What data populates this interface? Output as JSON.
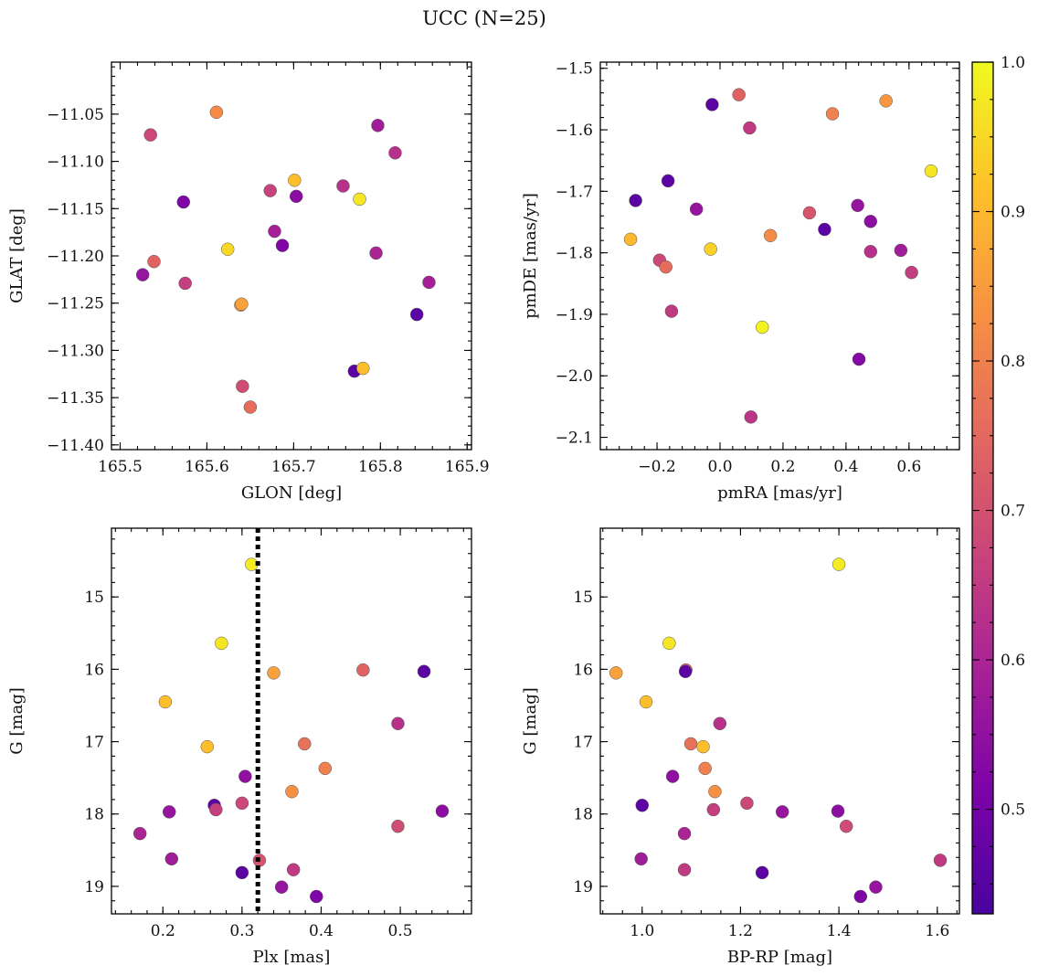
{
  "figure_title": "UCC (N=25)",
  "colorbar": {
    "range": [
      0.43,
      1.0
    ],
    "ticks": [
      0.5,
      0.6,
      0.7,
      0.8,
      0.9,
      1.0
    ],
    "tick_labels": [
      "0.5",
      "0.6",
      "0.7",
      "0.8",
      "0.9",
      "1.0"
    ],
    "colormap": "plasma"
  },
  "chart_data": [
    {
      "type": "scatter",
      "id": "glon-glat",
      "xlabel": "GLON [deg]",
      "ylabel": "GLAT [deg]",
      "xlim": [
        165.49,
        165.905
      ],
      "ylim": [
        -11.405,
        -10.995
      ],
      "y_inverted": false,
      "xticks": [
        165.5,
        165.6,
        165.7,
        165.8,
        165.9
      ],
      "xtick_labels": [
        "165.5",
        "165.6",
        "165.7",
        "165.8",
        "165.9"
      ],
      "yticks": [
        -11.05,
        -11.1,
        -11.15,
        -11.2,
        -11.25,
        -11.3,
        -11.35,
        -11.4
      ],
      "ytick_labels": [
        "−11.05",
        "−11.10",
        "−11.15",
        "−11.20",
        "−11.25",
        "−11.30",
        "−11.35",
        "−11.40"
      ],
      "grid": false,
      "points": [
        {
          "x": 165.611,
          "y": -11.048,
          "c": 0.82
        },
        {
          "x": 165.535,
          "y": -11.072,
          "c": 0.68
        },
        {
          "x": 165.797,
          "y": -11.062,
          "c": 0.58
        },
        {
          "x": 165.817,
          "y": -11.091,
          "c": 0.63
        },
        {
          "x": 165.701,
          "y": -11.12,
          "c": 0.91
        },
        {
          "x": 165.757,
          "y": -11.126,
          "c": 0.63
        },
        {
          "x": 165.673,
          "y": -11.131,
          "c": 0.67
        },
        {
          "x": 165.703,
          "y": -11.137,
          "c": 0.54
        },
        {
          "x": 165.776,
          "y": -11.14,
          "c": 0.97
        },
        {
          "x": 165.573,
          "y": -11.143,
          "c": 0.52
        },
        {
          "x": 165.678,
          "y": -11.174,
          "c": 0.59
        },
        {
          "x": 165.687,
          "y": -11.189,
          "c": 0.52
        },
        {
          "x": 165.624,
          "y": -11.193,
          "c": 0.95
        },
        {
          "x": 165.795,
          "y": -11.197,
          "c": 0.6
        },
        {
          "x": 165.539,
          "y": -11.206,
          "c": 0.74
        },
        {
          "x": 165.526,
          "y": -11.22,
          "c": 0.56
        },
        {
          "x": 165.856,
          "y": -11.228,
          "c": 0.59
        },
        {
          "x": 165.575,
          "y": -11.229,
          "c": 0.66
        },
        {
          "x": 165.639,
          "y": -11.252,
          "c": 0.84
        },
        {
          "x": 165.64,
          "y": -11.251,
          "c": 0.86
        },
        {
          "x": 165.842,
          "y": -11.262,
          "c": 0.46
        },
        {
          "x": 165.77,
          "y": -11.322,
          "c": 0.46
        },
        {
          "x": 165.78,
          "y": -11.319,
          "c": 0.91
        },
        {
          "x": 165.641,
          "y": -11.338,
          "c": 0.69
        },
        {
          "x": 165.65,
          "y": -11.36,
          "c": 0.76
        }
      ]
    },
    {
      "type": "scatter",
      "id": "pmra-pmde",
      "xlabel": "pmRA [mas/yr]",
      "ylabel": "pmDE [mas/yr]",
      "xlim": [
        -0.38,
        0.76
      ],
      "ylim": [
        -2.12,
        -1.49
      ],
      "y_inverted": false,
      "xticks": [
        -0.2,
        0.0,
        0.2,
        0.4,
        0.6
      ],
      "xtick_labels": [
        "−0.2",
        "0.0",
        "0.2",
        "0.4",
        "0.6"
      ],
      "yticks": [
        -1.5,
        -1.6,
        -1.7,
        -1.8,
        -1.9,
        -2.0,
        -2.1
      ],
      "ytick_labels": [
        "−1.5",
        "−1.6",
        "−1.7",
        "−1.8",
        "−1.9",
        "−2.0",
        "−2.1"
      ],
      "grid": false,
      "points": [
        {
          "x": 0.06,
          "y": -1.543,
          "c": 0.74
        },
        {
          "x": 0.527,
          "y": -1.553,
          "c": 0.84
        },
        {
          "x": -0.025,
          "y": -1.559,
          "c": 0.46
        },
        {
          "x": 0.357,
          "y": -1.574,
          "c": 0.8
        },
        {
          "x": 0.094,
          "y": -1.597,
          "c": 0.65
        },
        {
          "x": 0.67,
          "y": -1.667,
          "c": 0.97
        },
        {
          "x": -0.165,
          "y": -1.683,
          "c": 0.46
        },
        {
          "x": -0.268,
          "y": -1.715,
          "c": 0.46
        },
        {
          "x": 0.437,
          "y": -1.723,
          "c": 0.56
        },
        {
          "x": -0.075,
          "y": -1.729,
          "c": 0.56
        },
        {
          "x": 0.284,
          "y": -1.735,
          "c": 0.71
        },
        {
          "x": 0.478,
          "y": -1.749,
          "c": 0.54
        },
        {
          "x": 0.332,
          "y": -1.762,
          "c": 0.46
        },
        {
          "x": 0.16,
          "y": -1.772,
          "c": 0.82
        },
        {
          "x": -0.284,
          "y": -1.778,
          "c": 0.9
        },
        {
          "x": -0.03,
          "y": -1.794,
          "c": 0.94
        },
        {
          "x": 0.574,
          "y": -1.796,
          "c": 0.58
        },
        {
          "x": 0.478,
          "y": -1.798,
          "c": 0.63
        },
        {
          "x": -0.192,
          "y": -1.812,
          "c": 0.68
        },
        {
          "x": -0.172,
          "y": -1.823,
          "c": 0.76
        },
        {
          "x": 0.608,
          "y": -1.832,
          "c": 0.66
        },
        {
          "x": -0.154,
          "y": -1.895,
          "c": 0.65
        },
        {
          "x": 0.134,
          "y": -1.921,
          "c": 0.99
        },
        {
          "x": 0.441,
          "y": -1.973,
          "c": 0.53
        },
        {
          "x": 0.098,
          "y": -2.067,
          "c": 0.64
        }
      ]
    },
    {
      "type": "scatter",
      "id": "plx-g",
      "xlabel": "Plx [mas]",
      "ylabel": "G [mag]",
      "xlim": [
        0.135,
        0.59
      ],
      "ylim": [
        14.05,
        19.38
      ],
      "y_inverted": true,
      "xticks": [
        0.2,
        0.3,
        0.4,
        0.5
      ],
      "xtick_labels": [
        "0.2",
        "0.3",
        "0.4",
        "0.5"
      ],
      "yticks": [
        15,
        16,
        17,
        18,
        19
      ],
      "ytick_labels": [
        "15",
        "16",
        "17",
        "18",
        "19"
      ],
      "vline": {
        "x": 0.32,
        "style": "dotted"
      },
      "grid": false,
      "points": [
        {
          "x": 0.312,
          "y": 14.55,
          "c": 0.98
        },
        {
          "x": 0.274,
          "y": 15.64,
          "c": 0.97
        },
        {
          "x": 0.453,
          "y": 16.01,
          "c": 0.74
        },
        {
          "x": 0.34,
          "y": 16.05,
          "c": 0.86
        },
        {
          "x": 0.53,
          "y": 16.03,
          "c": 0.46
        },
        {
          "x": 0.203,
          "y": 16.45,
          "c": 0.91
        },
        {
          "x": 0.497,
          "y": 16.75,
          "c": 0.63
        },
        {
          "x": 0.379,
          "y": 17.03,
          "c": 0.77
        },
        {
          "x": 0.256,
          "y": 17.07,
          "c": 0.91
        },
        {
          "x": 0.405,
          "y": 17.37,
          "c": 0.8
        },
        {
          "x": 0.304,
          "y": 17.48,
          "c": 0.55
        },
        {
          "x": 0.363,
          "y": 17.69,
          "c": 0.83
        },
        {
          "x": 0.3,
          "y": 17.85,
          "c": 0.68
        },
        {
          "x": 0.265,
          "y": 17.88,
          "c": 0.46
        },
        {
          "x": 0.267,
          "y": 17.94,
          "c": 0.66
        },
        {
          "x": 0.208,
          "y": 17.97,
          "c": 0.56
        },
        {
          "x": 0.553,
          "y": 17.96,
          "c": 0.54
        },
        {
          "x": 0.497,
          "y": 18.17,
          "c": 0.69
        },
        {
          "x": 0.171,
          "y": 18.27,
          "c": 0.6
        },
        {
          "x": 0.211,
          "y": 18.62,
          "c": 0.58
        },
        {
          "x": 0.322,
          "y": 18.64,
          "c": 0.71
        },
        {
          "x": 0.365,
          "y": 18.77,
          "c": 0.65
        },
        {
          "x": 0.3,
          "y": 18.81,
          "c": 0.46
        },
        {
          "x": 0.35,
          "y": 19.01,
          "c": 0.56
        },
        {
          "x": 0.394,
          "y": 19.14,
          "c": 0.52
        }
      ]
    },
    {
      "type": "scatter",
      "id": "bprp-g",
      "xlabel": "BP-RP [mag]",
      "ylabel": "G [mag]",
      "xlim": [
        0.915,
        1.645
      ],
      "ylim": [
        14.05,
        19.38
      ],
      "y_inverted": true,
      "xticks": [
        1.0,
        1.2,
        1.4,
        1.6
      ],
      "xtick_labels": [
        "1.0",
        "1.2",
        "1.4",
        "1.6"
      ],
      "yticks": [
        15,
        16,
        17,
        18,
        19
      ],
      "ytick_labels": [
        "15",
        "16",
        "17",
        "18",
        "19"
      ],
      "grid": false,
      "points": [
        {
          "x": 1.4,
          "y": 14.55,
          "c": 0.98
        },
        {
          "x": 1.055,
          "y": 15.64,
          "c": 0.97
        },
        {
          "x": 0.947,
          "y": 16.05,
          "c": 0.86
        },
        {
          "x": 1.089,
          "y": 16.01,
          "c": 0.74
        },
        {
          "x": 1.088,
          "y": 16.03,
          "c": 0.46
        },
        {
          "x": 1.008,
          "y": 16.45,
          "c": 0.91
        },
        {
          "x": 1.158,
          "y": 16.75,
          "c": 0.63
        },
        {
          "x": 1.099,
          "y": 17.03,
          "c": 0.77
        },
        {
          "x": 1.124,
          "y": 17.07,
          "c": 0.91
        },
        {
          "x": 1.128,
          "y": 17.37,
          "c": 0.8
        },
        {
          "x": 1.062,
          "y": 17.48,
          "c": 0.55
        },
        {
          "x": 1.148,
          "y": 17.69,
          "c": 0.83
        },
        {
          "x": 1.213,
          "y": 17.85,
          "c": 0.68
        },
        {
          "x": 1.0,
          "y": 17.88,
          "c": 0.46
        },
        {
          "x": 1.145,
          "y": 17.94,
          "c": 0.66
        },
        {
          "x": 1.285,
          "y": 17.97,
          "c": 0.56
        },
        {
          "x": 1.398,
          "y": 17.96,
          "c": 0.54
        },
        {
          "x": 1.415,
          "y": 18.17,
          "c": 0.69
        },
        {
          "x": 1.086,
          "y": 18.27,
          "c": 0.6
        },
        {
          "x": 0.998,
          "y": 18.62,
          "c": 0.58
        },
        {
          "x": 1.606,
          "y": 18.64,
          "c": 0.65
        },
        {
          "x": 1.086,
          "y": 18.77,
          "c": 0.65
        },
        {
          "x": 1.244,
          "y": 18.81,
          "c": 0.46
        },
        {
          "x": 1.475,
          "y": 19.01,
          "c": 0.56
        },
        {
          "x": 1.444,
          "y": 19.14,
          "c": 0.52
        }
      ]
    }
  ]
}
